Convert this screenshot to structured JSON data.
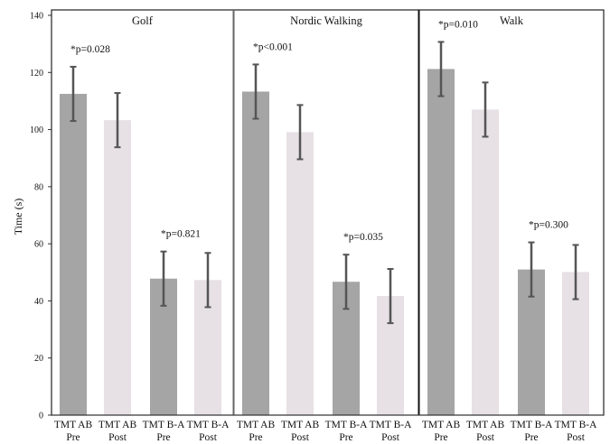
{
  "chart_data": {
    "type": "bar",
    "ylabel": "Time (s)",
    "ylim": [
      0,
      140
    ],
    "yticks": [
      0,
      20,
      40,
      60,
      80,
      100,
      120,
      140
    ],
    "grid": false,
    "colors": {
      "pre": "#a5a5a5",
      "post": "#e7e0e4",
      "error_bar": "#555555",
      "frame": "#222222"
    },
    "panels": [
      {
        "title": "Golf",
        "bars": [
          {
            "label_top": "TMT AB",
            "label_bottom": "Pre",
            "value": 112.5,
            "error": 9.5,
            "kind": "pre"
          },
          {
            "label_top": "TMT AB",
            "label_bottom": "Post",
            "value": 103.3,
            "error": 9.5,
            "kind": "post"
          },
          {
            "label_top": "TMT B-A",
            "label_bottom": "Pre",
            "value": 47.8,
            "error": 9.5,
            "kind": "pre"
          },
          {
            "label_top": "TMT B-A",
            "label_bottom": "Post",
            "value": 47.3,
            "error": 9.5,
            "kind": "post"
          }
        ],
        "annotations": [
          {
            "text": "*p=0.028",
            "group": "AB"
          },
          {
            "text": "*p=0.821",
            "group": "BA"
          }
        ]
      },
      {
        "title": "Nordic Walking",
        "bars": [
          {
            "label_top": "TMT AB",
            "label_bottom": "Pre",
            "value": 113.3,
            "error": 9.5,
            "kind": "pre"
          },
          {
            "label_top": "TMT AB",
            "label_bottom": "Post",
            "value": 99.1,
            "error": 9.5,
            "kind": "post"
          },
          {
            "label_top": "TMT B-A",
            "label_bottom": "Pre",
            "value": 46.7,
            "error": 9.5,
            "kind": "pre"
          },
          {
            "label_top": "TMT B-A",
            "label_bottom": "Post",
            "value": 41.7,
            "error": 9.5,
            "kind": "post"
          }
        ],
        "annotations": [
          {
            "text": "*p<0.001",
            "group": "AB"
          },
          {
            "text": "*p=0.035",
            "group": "BA"
          }
        ]
      },
      {
        "title": "Walk",
        "bars": [
          {
            "label_top": "TMT AB",
            "label_bottom": "Pre",
            "value": 121.2,
            "error": 9.5,
            "kind": "pre"
          },
          {
            "label_top": "TMT AB",
            "label_bottom": "Post",
            "value": 107.0,
            "error": 9.5,
            "kind": "post"
          },
          {
            "label_top": "TMT B-A",
            "label_bottom": "Pre",
            "value": 51.0,
            "error": 9.5,
            "kind": "pre"
          },
          {
            "label_top": "TMT B-A",
            "label_bottom": "Post",
            "value": 50.1,
            "error": 9.5,
            "kind": "post"
          }
        ],
        "annotations": [
          {
            "text": "*p=0.010",
            "group": "AB"
          },
          {
            "text": "*p=0.300",
            "group": "BA"
          }
        ]
      }
    ]
  }
}
